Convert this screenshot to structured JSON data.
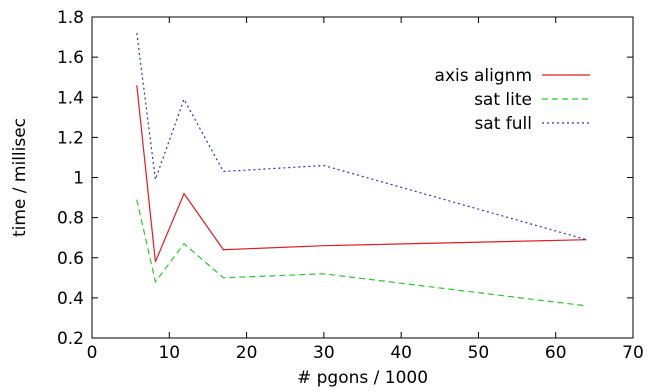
{
  "chart_data": {
    "type": "line",
    "title": "",
    "xlabel": "# pgons / 1000",
    "ylabel": "time / millisec",
    "xlim": [
      0,
      70
    ],
    "ylim": [
      0.2,
      1.8
    ],
    "xticks": [
      0,
      10,
      20,
      30,
      40,
      50,
      60,
      70
    ],
    "yticks": [
      0.2,
      0.4,
      0.6,
      0.8,
      1,
      1.2,
      1.4,
      1.6,
      1.8
    ],
    "xtick_labels": [
      "0",
      "10",
      "20",
      "30",
      "40",
      "50",
      "60",
      "70"
    ],
    "ytick_labels": [
      "0.2",
      "0.4",
      "0.6",
      "0.8",
      "1",
      "1.2",
      "1.4",
      "1.6",
      "1.8"
    ],
    "grid": false,
    "legend_position": "top-right",
    "x": [
      5.8,
      8.2,
      11.9,
      17.0,
      30.0,
      64.0
    ],
    "series": [
      {
        "name": "axis alignm",
        "color": "#e41a1c",
        "dash": "solid",
        "values": [
          1.46,
          0.58,
          0.92,
          0.64,
          0.66,
          0.69
        ]
      },
      {
        "name": "sat lite",
        "color": "#22cc22",
        "dash": "dashed",
        "values": [
          0.89,
          0.48,
          0.67,
          0.5,
          0.52,
          0.36
        ]
      },
      {
        "name": "sat full",
        "color": "#2233cc",
        "dash": "dotted",
        "values": [
          1.72,
          0.99,
          1.39,
          1.03,
          1.06,
          0.69
        ]
      }
    ]
  }
}
